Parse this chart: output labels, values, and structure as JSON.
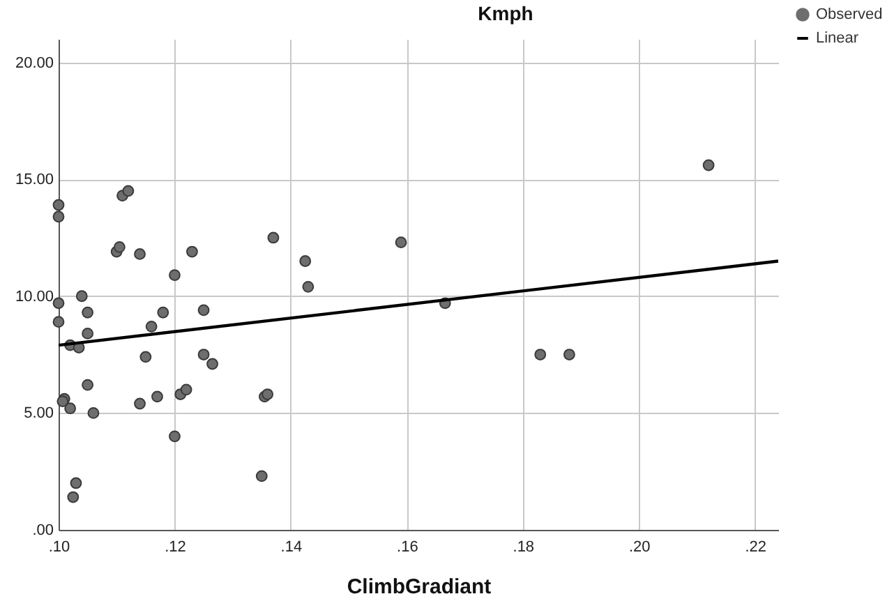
{
  "chart_data": {
    "type": "scatter",
    "ylabel": "Kmph",
    "xlabel": "ClimbGradiant",
    "xlim": [
      0.1,
      0.224
    ],
    "xticks": [
      {
        "value": 0.1,
        "label": ".10"
      },
      {
        "value": 0.12,
        "label": ".12"
      },
      {
        "value": 0.14,
        "label": ".14"
      },
      {
        "value": 0.16,
        "label": ".16"
      },
      {
        "value": 0.18,
        "label": ".18"
      },
      {
        "value": 0.2,
        "label": ".20"
      },
      {
        "value": 0.22,
        "label": ".22"
      }
    ],
    "ylim": [
      0,
      21
    ],
    "yticks": [
      {
        "value": 0,
        "label": ".00"
      },
      {
        "value": 5,
        "label": "5.00"
      },
      {
        "value": 10,
        "label": "10.00"
      },
      {
        "value": 15,
        "label": "15.00"
      },
      {
        "value": 20,
        "label": "20.00"
      }
    ],
    "grid": true,
    "legend": "top right",
    "series": [
      {
        "name": "Observed",
        "marker": "circle",
        "color": "#6e6e6e",
        "x": [
          0.1,
          0.1,
          0.1,
          0.1,
          0.102,
          0.1035,
          0.104,
          0.105,
          0.105,
          0.105,
          0.101,
          0.1007,
          0.102,
          0.106,
          0.103,
          0.1025,
          0.11,
          0.1105,
          0.111,
          0.112,
          0.114,
          0.115,
          0.114,
          0.117,
          0.116,
          0.118,
          0.12,
          0.123,
          0.125,
          0.125,
          0.1265,
          0.121,
          0.122,
          0.12,
          0.137,
          0.1425,
          0.143,
          0.159,
          0.1666,
          0.1355,
          0.136,
          0.135,
          0.183,
          0.188,
          0.212
        ],
        "values": [
          13.9,
          13.4,
          9.7,
          8.9,
          7.9,
          7.8,
          10.0,
          9.3,
          8.4,
          6.2,
          5.6,
          5.5,
          5.2,
          5.0,
          2.0,
          1.4,
          11.9,
          12.1,
          14.3,
          14.5,
          11.8,
          7.4,
          5.4,
          5.7,
          8.7,
          9.3,
          10.9,
          11.9,
          9.4,
          7.5,
          7.1,
          5.8,
          6.0,
          4.0,
          12.5,
          11.5,
          10.4,
          12.3,
          9.7,
          5.7,
          5.8,
          2.3,
          7.5,
          7.5,
          15.6
        ]
      },
      {
        "name": "Linear",
        "type": "line",
        "color": "#000000",
        "x": [
          0.1,
          0.224
        ],
        "values": [
          7.9,
          11.5
        ]
      }
    ]
  }
}
